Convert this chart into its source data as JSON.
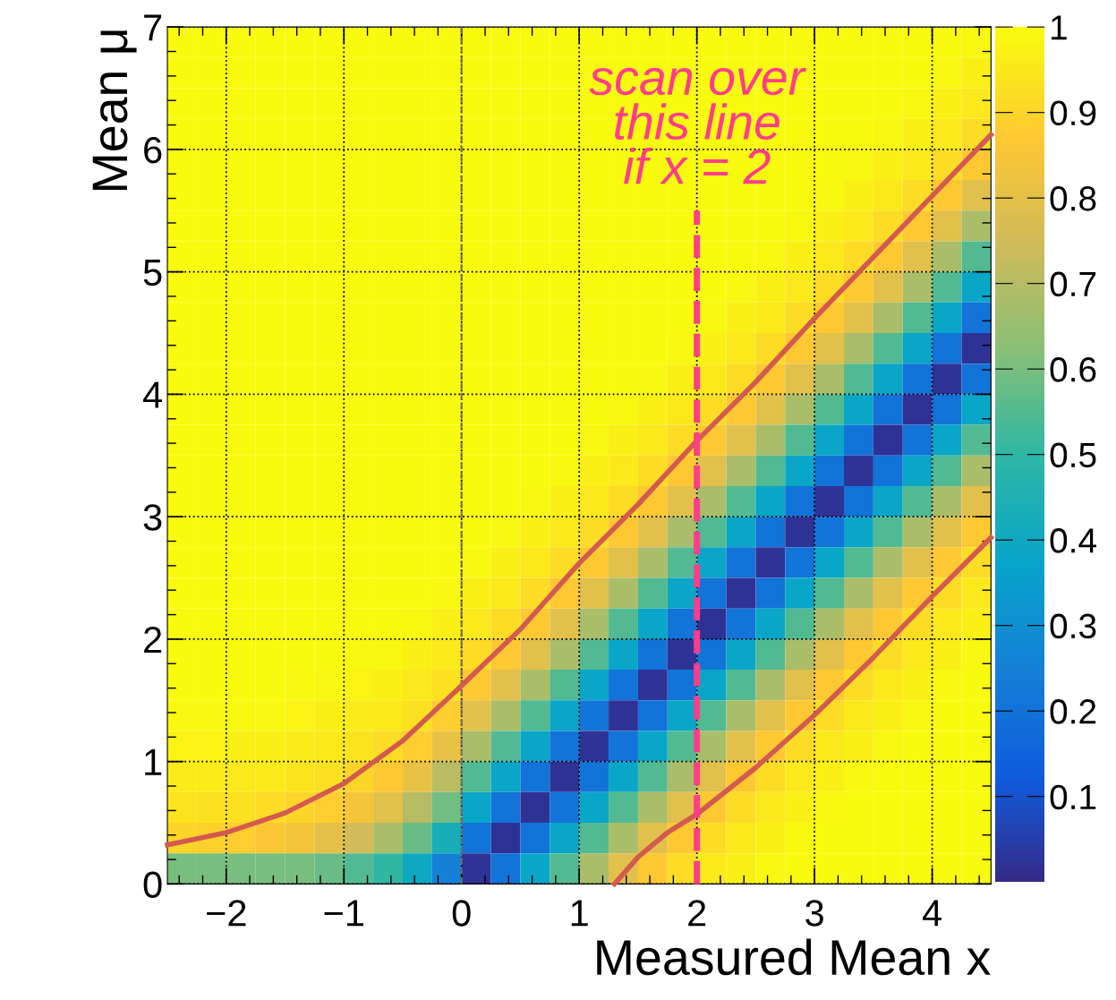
{
  "chart_data": {
    "type": "heatmap",
    "xlabel": "Measured Mean x",
    "ylabel": "Mean μ",
    "x": [
      -2.375,
      -2.125,
      -1.875,
      -1.625,
      -1.375,
      -1.125,
      -0.875,
      -0.625,
      -0.375,
      -0.125,
      0.125,
      0.375,
      0.625,
      0.875,
      1.125,
      1.375,
      1.625,
      1.875,
      2.125,
      2.375,
      2.625,
      2.875,
      3.125,
      3.375,
      3.625,
      3.875,
      4.125,
      4.375
    ],
    "y": [
      6.875,
      6.625,
      6.375,
      6.125,
      5.875,
      5.625,
      5.375,
      5.125,
      4.875,
      4.625,
      4.375,
      4.125,
      3.875,
      3.625,
      3.375,
      3.125,
      2.875,
      2.625,
      2.375,
      2.125,
      1.875,
      1.625,
      1.375,
      1.125,
      0.875,
      0.625,
      0.375,
      0.125
    ],
    "cells": [
      [
        1,
        1,
        1,
        1,
        1,
        1,
        1,
        1,
        1,
        1,
        1,
        1,
        1,
        1,
        1,
        1,
        1,
        1,
        1,
        1,
        1,
        1,
        1,
        1,
        1,
        1,
        1,
        0.99
      ],
      [
        1,
        1,
        1,
        1,
        1,
        1,
        1,
        1,
        1,
        1,
        1,
        1,
        1,
        1,
        1,
        1,
        1,
        1,
        1,
        1,
        1,
        1,
        1,
        1,
        1,
        1,
        0.99,
        0.97
      ],
      [
        1,
        1,
        1,
        1,
        1,
        1,
        1,
        1,
        1,
        1,
        1,
        1,
        1,
        1,
        1,
        1,
        1,
        1,
        1,
        1,
        1,
        1,
        1,
        1,
        1,
        0.99,
        0.97,
        0.95
      ],
      [
        1,
        1,
        1,
        1,
        1,
        1,
        1,
        1,
        1,
        1,
        1,
        1,
        1,
        1,
        1,
        1,
        1,
        1,
        1,
        1,
        1,
        1,
        1,
        1,
        0.99,
        0.97,
        0.95,
        0.92
      ],
      [
        1,
        1,
        1,
        1,
        1,
        1,
        1,
        1,
        1,
        1,
        1,
        1,
        1,
        1,
        1,
        1,
        1,
        1,
        1,
        1,
        1,
        1,
        1,
        0.99,
        0.97,
        0.95,
        0.92,
        0.87
      ],
      [
        1,
        1,
        1,
        1,
        1,
        1,
        1,
        1,
        1,
        1,
        1,
        1,
        1,
        1,
        1,
        1,
        1,
        1,
        1,
        1,
        1,
        1,
        0.99,
        0.97,
        0.95,
        0.92,
        0.87,
        0.79
      ],
      [
        1,
        1,
        1,
        1,
        1,
        1,
        1,
        1,
        1,
        1,
        1,
        1,
        1,
        1,
        1,
        1,
        1,
        1,
        1,
        1,
        1,
        0.99,
        0.97,
        0.95,
        0.92,
        0.87,
        0.79,
        0.68
      ],
      [
        1,
        1,
        1,
        1,
        1,
        1,
        1,
        1,
        1,
        1,
        1,
        1,
        1,
        1,
        1,
        1,
        1,
        1,
        1,
        1,
        0.99,
        0.97,
        0.95,
        0.92,
        0.87,
        0.79,
        0.68,
        0.55
      ],
      [
        1,
        1,
        1,
        1,
        1,
        1,
        1,
        1,
        1,
        1,
        1,
        1,
        1,
        1,
        1,
        1,
        1,
        1,
        1,
        0.99,
        0.97,
        0.95,
        0.92,
        0.87,
        0.79,
        0.68,
        0.55,
        0.38
      ],
      [
        1,
        1,
        1,
        1,
        1,
        1,
        1,
        1,
        1,
        1,
        1,
        1,
        1,
        1,
        1,
        1,
        1,
        1,
        0.99,
        0.97,
        0.95,
        0.92,
        0.87,
        0.79,
        0.68,
        0.55,
        0.38,
        0.2
      ],
      [
        1,
        1,
        1,
        1,
        1,
        1,
        1,
        1,
        1,
        1,
        1,
        1,
        1,
        1,
        1,
        1,
        1,
        0.99,
        0.97,
        0.95,
        0.92,
        0.87,
        0.79,
        0.68,
        0.55,
        0.38,
        0.2,
        0.02
      ],
      [
        1,
        1,
        1,
        1,
        1,
        1,
        1,
        1,
        1,
        1,
        1,
        1,
        1,
        1,
        1,
        1,
        0.99,
        0.97,
        0.95,
        0.92,
        0.87,
        0.79,
        0.68,
        0.55,
        0.38,
        0.2,
        0.02,
        0.2
      ],
      [
        1,
        1,
        1,
        1,
        1,
        1,
        1,
        1,
        1,
        1,
        1,
        1,
        1,
        1,
        1,
        0.99,
        0.97,
        0.95,
        0.92,
        0.87,
        0.79,
        0.68,
        0.55,
        0.38,
        0.2,
        0.02,
        0.2,
        0.38
      ],
      [
        1,
        1,
        1,
        1,
        1,
        1,
        1,
        1,
        1,
        1,
        1,
        1,
        1,
        1,
        0.99,
        0.97,
        0.95,
        0.92,
        0.87,
        0.79,
        0.68,
        0.55,
        0.38,
        0.2,
        0.02,
        0.2,
        0.38,
        0.55
      ],
      [
        1,
        1,
        1,
        1,
        1,
        1,
        1,
        1,
        1,
        1,
        1,
        1,
        1,
        0.99,
        0.97,
        0.95,
        0.92,
        0.87,
        0.79,
        0.68,
        0.55,
        0.38,
        0.2,
        0.02,
        0.2,
        0.38,
        0.55,
        0.68
      ],
      [
        1,
        1,
        1,
        1,
        1,
        1,
        1,
        1,
        1,
        1,
        1,
        1,
        0.99,
        0.97,
        0.95,
        0.92,
        0.87,
        0.79,
        0.68,
        0.55,
        0.38,
        0.2,
        0.02,
        0.2,
        0.38,
        0.55,
        0.68,
        0.79
      ],
      [
        1,
        1,
        1,
        1,
        1,
        1,
        1,
        1,
        1,
        1,
        1,
        0.99,
        0.97,
        0.95,
        0.92,
        0.87,
        0.79,
        0.68,
        0.55,
        0.38,
        0.2,
        0.02,
        0.2,
        0.38,
        0.55,
        0.68,
        0.79,
        0.87
      ],
      [
        1,
        1,
        1,
        1,
        1,
        1,
        1,
        1,
        1,
        1,
        0.99,
        0.97,
        0.95,
        0.92,
        0.87,
        0.79,
        0.68,
        0.55,
        0.38,
        0.2,
        0.02,
        0.2,
        0.38,
        0.55,
        0.68,
        0.79,
        0.87,
        0.92
      ],
      [
        1,
        1,
        1,
        1,
        1,
        1,
        1,
        1,
        1,
        0.99,
        0.97,
        0.95,
        0.92,
        0.87,
        0.79,
        0.68,
        0.55,
        0.38,
        0.2,
        0.02,
        0.2,
        0.38,
        0.55,
        0.68,
        0.79,
        0.87,
        0.92,
        0.95
      ],
      [
        1,
        1,
        1,
        1,
        1,
        1,
        1,
        1,
        0.99,
        0.97,
        0.95,
        0.92,
        0.87,
        0.79,
        0.68,
        0.55,
        0.38,
        0.2,
        0.02,
        0.2,
        0.38,
        0.55,
        0.68,
        0.79,
        0.87,
        0.92,
        0.95,
        0.97
      ],
      [
        1,
        1,
        1,
        1,
        1,
        1,
        0.99,
        0.99,
        0.97,
        0.95,
        0.92,
        0.87,
        0.79,
        0.68,
        0.55,
        0.38,
        0.2,
        0.02,
        0.2,
        0.38,
        0.55,
        0.68,
        0.79,
        0.87,
        0.92,
        0.95,
        0.97,
        0.99
      ],
      [
        1,
        1,
        1,
        1,
        0.99,
        0.99,
        0.98,
        0.97,
        0.95,
        0.93,
        0.87,
        0.79,
        0.68,
        0.55,
        0.38,
        0.2,
        0.02,
        0.2,
        0.38,
        0.55,
        0.68,
        0.79,
        0.87,
        0.92,
        0.95,
        0.97,
        0.99,
        1
      ],
      [
        0.99,
        0.99,
        0.99,
        0.99,
        0.98,
        0.97,
        0.96,
        0.95,
        0.93,
        0.88,
        0.79,
        0.68,
        0.55,
        0.38,
        0.2,
        0.02,
        0.2,
        0.38,
        0.55,
        0.68,
        0.79,
        0.87,
        0.92,
        0.95,
        0.97,
        0.99,
        1,
        1
      ],
      [
        0.98,
        0.98,
        0.97,
        0.97,
        0.96,
        0.95,
        0.94,
        0.92,
        0.88,
        0.81,
        0.68,
        0.55,
        0.38,
        0.2,
        0.02,
        0.2,
        0.38,
        0.55,
        0.68,
        0.79,
        0.87,
        0.92,
        0.95,
        0.97,
        0.99,
        1,
        1,
        1
      ],
      [
        0.96,
        0.96,
        0.95,
        0.95,
        0.94,
        0.93,
        0.9,
        0.87,
        0.81,
        0.71,
        0.55,
        0.38,
        0.2,
        0.02,
        0.2,
        0.38,
        0.55,
        0.68,
        0.79,
        0.87,
        0.92,
        0.95,
        0.97,
        0.99,
        1,
        1,
        1,
        1
      ],
      [
        0.94,
        0.93,
        0.93,
        0.92,
        0.9,
        0.88,
        0.84,
        0.79,
        0.7,
        0.59,
        0.38,
        0.2,
        0.02,
        0.2,
        0.38,
        0.55,
        0.68,
        0.79,
        0.87,
        0.92,
        0.95,
        0.97,
        0.99,
        1,
        1,
        1,
        1,
        1
      ],
      [
        0.9,
        0.89,
        0.88,
        0.86,
        0.84,
        0.8,
        0.75,
        0.68,
        0.58,
        0.43,
        0.2,
        0.02,
        0.2,
        0.38,
        0.55,
        0.68,
        0.79,
        0.87,
        0.92,
        0.95,
        0.97,
        0.99,
        1,
        1,
        1,
        1,
        1,
        1
      ],
      [
        0.6,
        0.6,
        0.6,
        0.6,
        0.6,
        0.58,
        0.55,
        0.5,
        0.4,
        0.25,
        0.02,
        0.2,
        0.38,
        0.55,
        0.68,
        0.79,
        0.87,
        0.92,
        0.95,
        0.97,
        0.99,
        1,
        1,
        1,
        1,
        1,
        1,
        1
      ]
    ],
    "clim": [
      0,
      1
    ],
    "cticks": [
      0.1,
      0.2,
      0.3,
      0.4,
      0.5,
      0.6,
      0.7,
      0.8,
      0.9,
      1
    ],
    "xlim": [
      -2.5,
      4.5
    ],
    "ylim": [
      0,
      7
    ],
    "xticks": [
      {
        "value": -2,
        "label": "−2"
      },
      {
        "value": -1,
        "label": "−1"
      },
      0,
      1,
      2,
      3,
      4
    ],
    "yticks": [
      0,
      1,
      2,
      3,
      4,
      5,
      6,
      7
    ],
    "grid": true,
    "series": [
      {
        "type": "line",
        "color": "#d35a4f",
        "x": [
          -2.5,
          -2,
          -1.5,
          -1,
          -0.5,
          0,
          0.5,
          1,
          1.5,
          2,
          2.5,
          3,
          3.5,
          4,
          4.5
        ],
        "values": [
          0.32,
          0.42,
          0.58,
          0.82,
          1.17,
          1.62,
          2.08,
          2.62,
          3.1,
          3.62,
          4.1,
          4.62,
          5.12,
          5.62,
          6.12
        ]
      },
      {
        "type": "line",
        "color": "#d35a4f",
        "x": [
          1.3,
          1.5,
          1.75,
          2,
          2.5,
          3,
          3.5,
          4,
          4.5
        ],
        "values": [
          0,
          0.22,
          0.42,
          0.57,
          0.95,
          1.38,
          1.85,
          2.35,
          2.83
        ]
      },
      {
        "type": "line",
        "color": "#ff3d8b",
        "line_style": "dashed",
        "x": [
          2,
          2
        ],
        "values": [
          0,
          5.5
        ]
      }
    ],
    "ref_lines": [
      {
        "axis": "x",
        "value": 0,
        "color": "#707070",
        "line_style": "dashed"
      }
    ],
    "annotations": [
      "scan over\nthis line\nif x = 2"
    ]
  }
}
